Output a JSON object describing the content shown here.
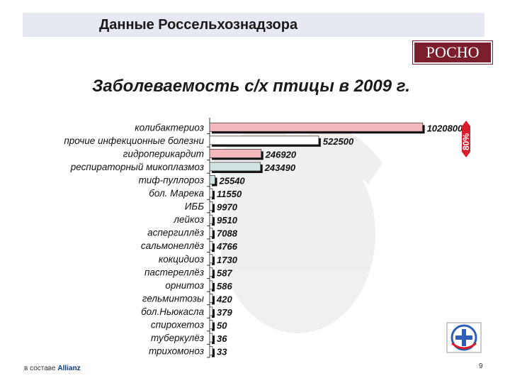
{
  "header": {
    "title": "Данные Россельхознадзора"
  },
  "logo": {
    "text": "РОСНО"
  },
  "footer": {
    "prefix": "в составе ",
    "brand": "Allianz",
    "page": "9"
  },
  "chart_data": {
    "type": "bar",
    "orientation": "horizontal",
    "title": "Заболеваемость с/х птицы в 2009 г.",
    "xlabel": "",
    "ylabel": "",
    "categories": [
      "колибактериоз",
      "прочие инфекционные болезни",
      "гидроперикардит",
      "респираторный микоплазмоз",
      "тиф-пуллороз",
      "бол. Марека",
      "ИББ",
      "лейкоз",
      "аспергиллёз",
      "сальмонеллёз",
      "кокцидиоз",
      "пастереллёз",
      "орнитоз",
      "гельминтозы",
      "бол.Ньюкасла",
      "спирохетоз",
      "туберкулёз",
      "трихомоноз"
    ],
    "values": [
      1020800,
      522500,
      246920,
      243490,
      25540,
      11550,
      9970,
      9510,
      7088,
      4766,
      1730,
      587,
      586,
      420,
      379,
      50,
      36,
      33
    ],
    "labels": [
      "1020800",
      "522500",
      "246920",
      "243490",
      "25540",
      "11550",
      "9970",
      "9510",
      "7088",
      "4766",
      "1730",
      "587",
      "586",
      "420",
      "379",
      "50",
      "36",
      "33"
    ],
    "bar_colors": [
      "#f4b8be",
      "#ffffff",
      "#f4b8be",
      "#cfe3e3",
      "#cfe3e3",
      "#ffffff",
      "#ffffff",
      "#ffffff",
      "#ffffff",
      "#ffffff",
      "#ffffff",
      "#ffffff",
      "#ffffff",
      "#ffffff",
      "#ffffff",
      "#ffffff",
      "#ffffff",
      "#ffffff"
    ],
    "xlim": [
      0,
      1080000
    ],
    "grid": false,
    "annotation": {
      "text": "80%",
      "color": "#d81e2c"
    }
  }
}
